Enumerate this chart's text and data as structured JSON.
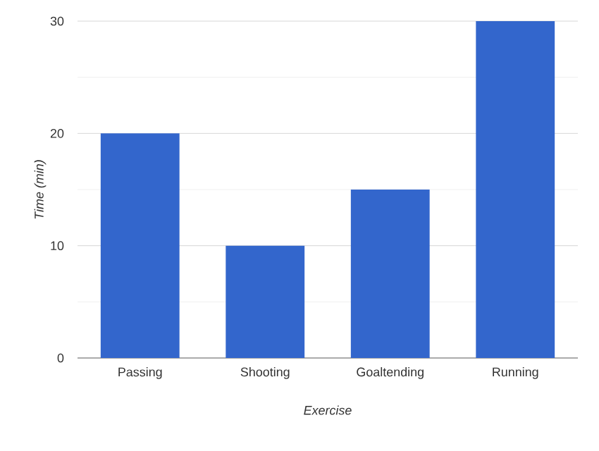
{
  "chart_data": {
    "type": "bar",
    "xlabel": "Exercise",
    "ylabel": "Time (min)",
    "categories": [
      "Passing",
      "Shooting",
      "Goaltending",
      "Running"
    ],
    "values": [
      20,
      10,
      15,
      30
    ],
    "color": "#3366cc",
    "ylim": [
      0,
      30
    ],
    "yticks": [
      0,
      {
        "value": 5,
        "label": null
      },
      10,
      {
        "value": 15,
        "label": null
      },
      20,
      {
        "value": 25,
        "label": null
      },
      30
    ],
    "grid": true
  }
}
